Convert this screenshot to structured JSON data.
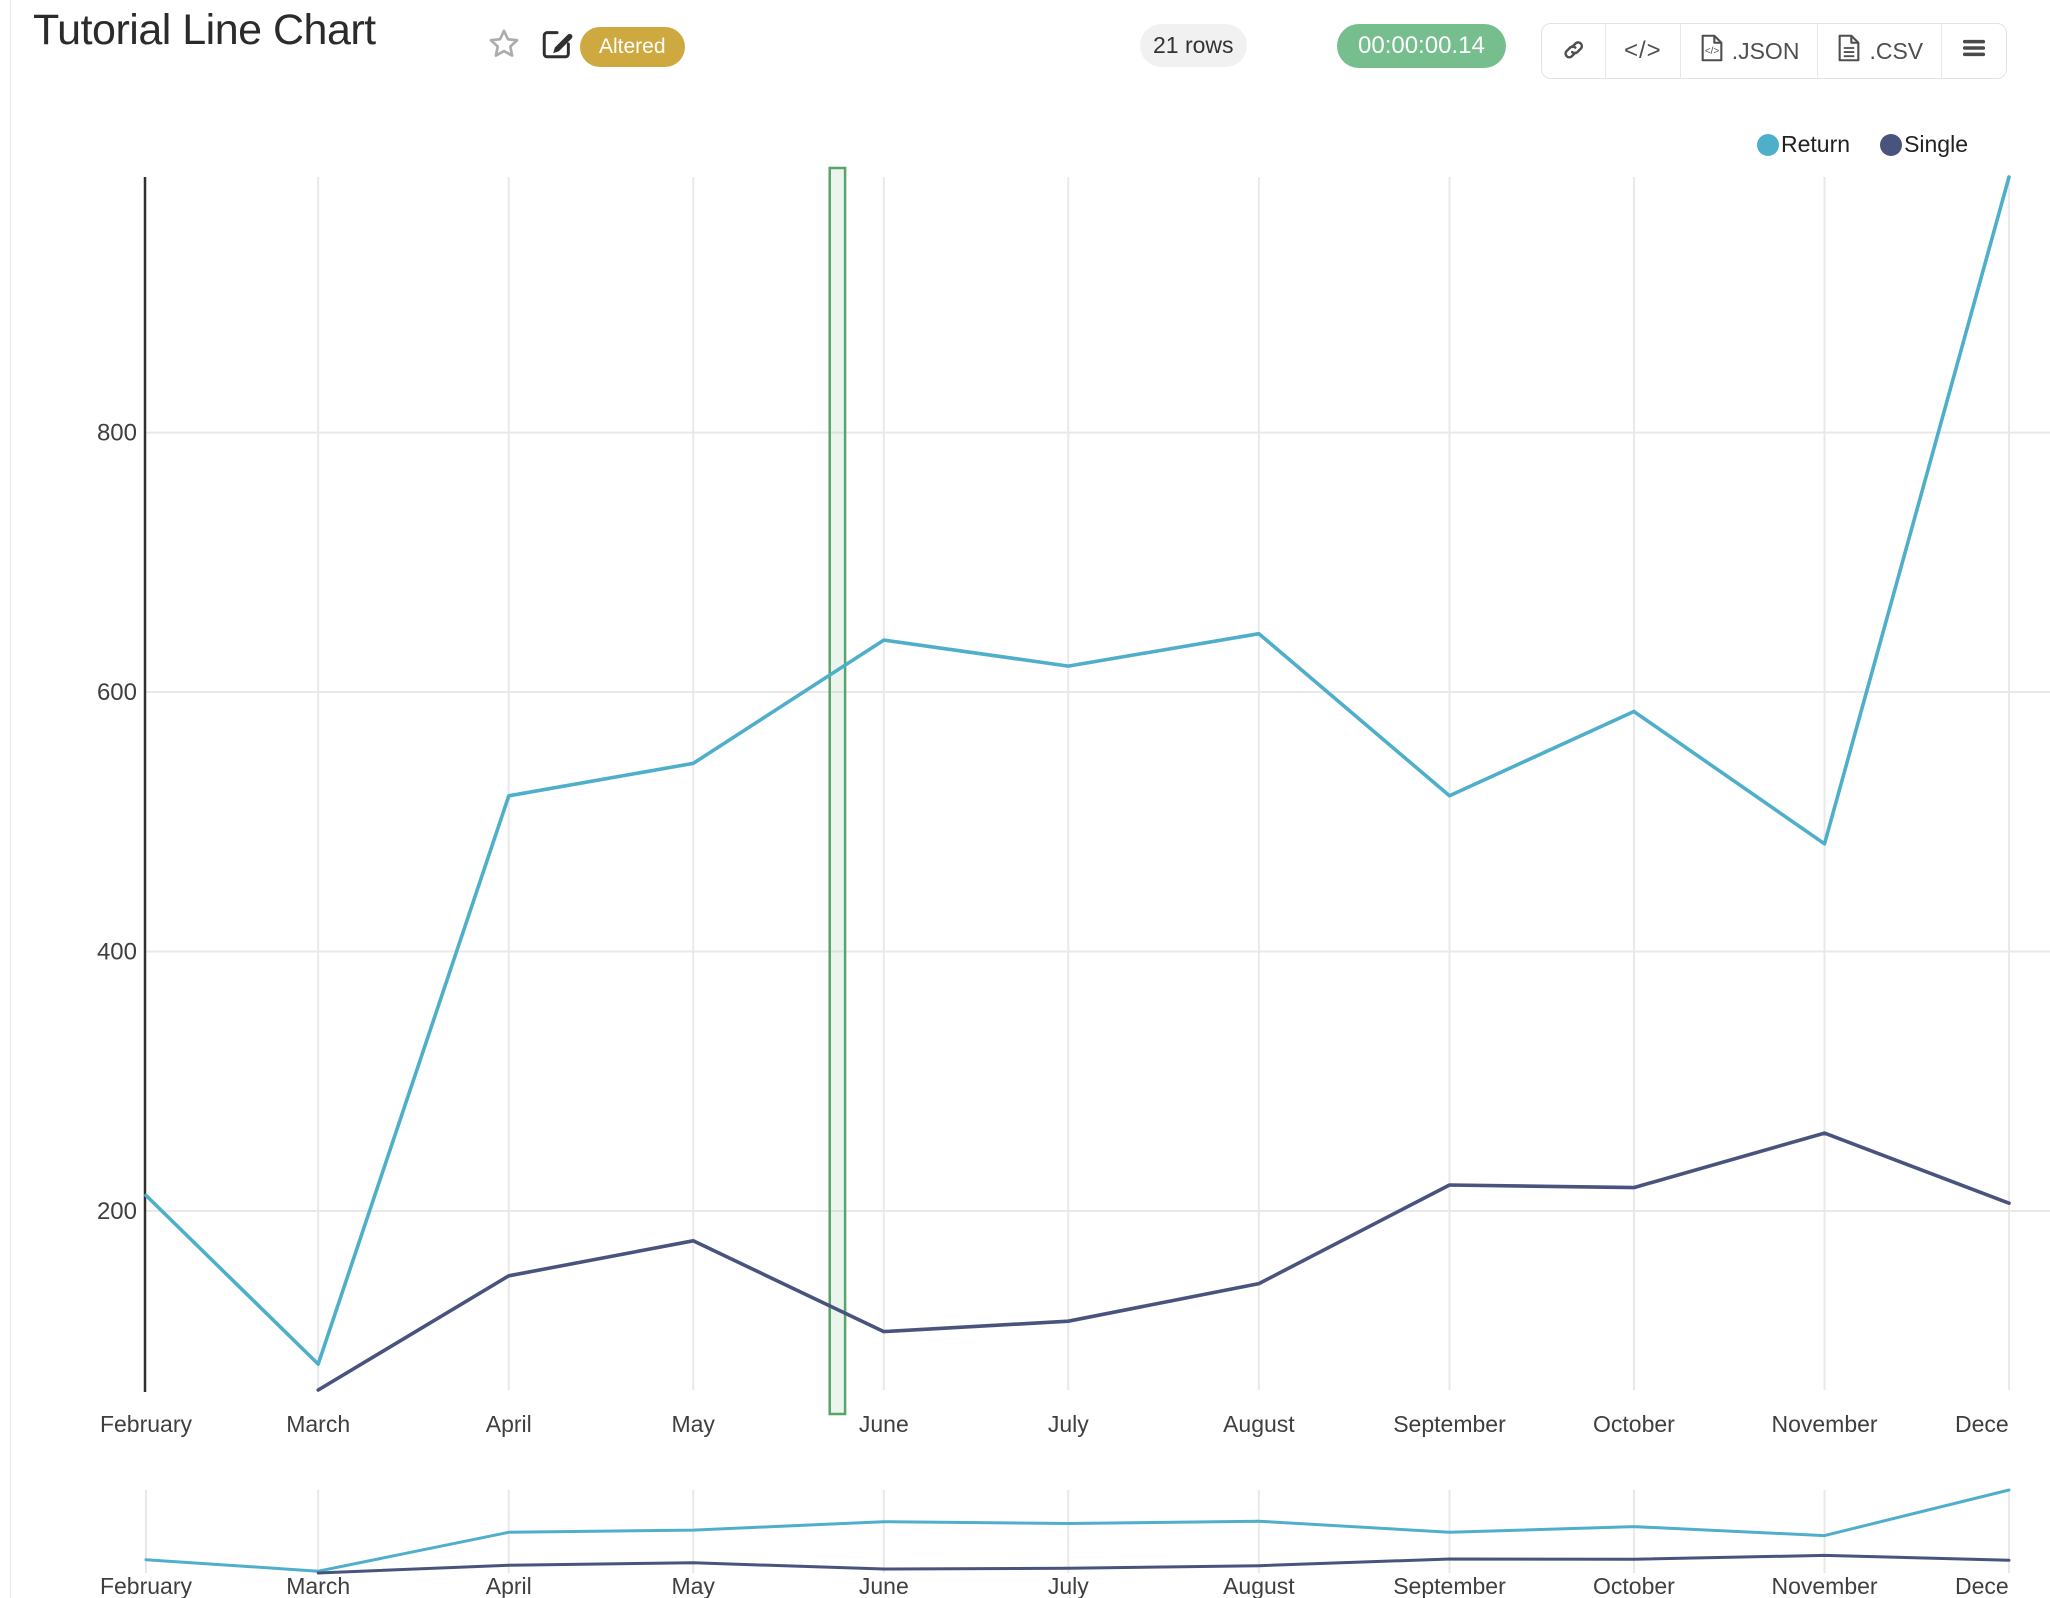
{
  "header": {
    "title": "Tutorial Line Chart",
    "altered_badge": "Altered",
    "rows_badge": "21 rows",
    "runtime_badge": "00:00:00.14",
    "toolbar": {
      "json_label": ".JSON",
      "csv_label": ".CSV"
    }
  },
  "icons": [
    "star-icon",
    "edit-icon",
    "link-icon",
    "embed-code-icon",
    "json-file-icon",
    "csv-file-icon",
    "menu-icon"
  ],
  "legend": [
    {
      "label": "Return",
      "color": "#4FAFCB"
    },
    {
      "label": "Single",
      "color": "#49547E"
    }
  ],
  "chart_data": {
    "type": "line",
    "x_labels": [
      "February",
      "March",
      "April",
      "May",
      "June",
      "July",
      "August",
      "September",
      "October",
      "November",
      "Dece"
    ],
    "x_day_offsets": [
      0,
      28,
      59,
      89,
      120,
      150,
      181,
      212,
      242,
      273,
      303
    ],
    "series": [
      {
        "name": "Return",
        "color": "#4FAFCB",
        "values": [
          212,
          82,
          520,
          545,
          640,
          620,
          645,
          520,
          585,
          483,
          997
        ]
      },
      {
        "name": "Single",
        "color": "#49547E",
        "values": [
          null,
          62,
          150,
          177,
          107,
          115,
          144,
          220,
          218,
          260,
          206
        ]
      }
    ],
    "y_ticks": [
      200,
      400,
      600,
      800
    ],
    "ylim": [
      62,
      997
    ],
    "grid": true,
    "legend_position": "top-right",
    "selection_band": {
      "x0_day": 111.2,
      "x1_day": 113.7,
      "fill": "rgba(130,190,140,0.16)",
      "border": "#57A568"
    },
    "range_slider": true,
    "grid_color": "#e9e9e9",
    "axis_color": "#303030",
    "tick_label_color": "#3f3f3f"
  }
}
